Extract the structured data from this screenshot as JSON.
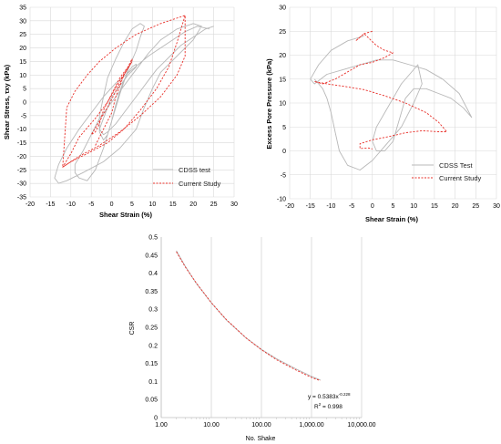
{
  "chart_data": [
    {
      "type": "line",
      "id": "stress",
      "xlabel": "Shear Strain (%)",
      "ylabel": "Shear Stress, τxy (kPa)",
      "xlim": [
        -20,
        30
      ],
      "ylim": [
        -35,
        35
      ],
      "xticks": [
        -20,
        -15,
        -10,
        -5,
        0,
        5,
        10,
        15,
        20,
        25,
        30
      ],
      "yticks": [
        -35,
        -30,
        -25,
        -20,
        -15,
        -10,
        -5,
        0,
        5,
        10,
        15,
        20,
        25,
        30,
        35
      ],
      "grid": true,
      "legend_position": "bottom-right",
      "series": [
        {
          "name": "CDSS test",
          "color": "#b8b8b8",
          "style": "solid",
          "x": [
            24,
            21,
            18,
            14,
            9,
            5,
            1,
            -2,
            -5,
            -8,
            -11,
            -13,
            -14,
            -13,
            -11,
            -7,
            -2,
            2,
            6,
            8,
            10,
            12,
            16,
            20,
            22,
            20,
            16,
            12,
            9,
            6,
            3,
            0,
            -3,
            -5,
            -7,
            -9,
            -9,
            -8,
            -6,
            -4,
            -2,
            0,
            2,
            4,
            6,
            7,
            8,
            7,
            5,
            3,
            1,
            -1,
            -2,
            -3,
            -3,
            -2,
            -1,
            0,
            1,
            2,
            3,
            4,
            5,
            6,
            6,
            4,
            2,
            0,
            -1,
            -2,
            -3,
            -2,
            -1,
            1,
            3,
            5,
            7,
            9,
            11,
            13,
            15,
            17,
            19,
            21,
            23,
            25
          ],
          "y": [
            27,
            28,
            26,
            22,
            17,
            12,
            7,
            2,
            -4,
            -10,
            -17,
            -23,
            -28,
            -30,
            -29,
            -26,
            -22,
            -17,
            -10,
            -2,
            5,
            11,
            17,
            23,
            28,
            29,
            27,
            23,
            18,
            12,
            6,
            0,
            -6,
            -12,
            -18,
            -23,
            -26,
            -28,
            -29,
            -25,
            -17,
            -7,
            3,
            12,
            19,
            24,
            28,
            29,
            27,
            22,
            16,
            9,
            2,
            -5,
            -11,
            -14,
            -12,
            -7,
            -1,
            4,
            8,
            11,
            13,
            14,
            13,
            10,
            6,
            2,
            -2,
            -6,
            -10,
            -12,
            -11,
            -8,
            -4,
            0,
            4,
            8,
            12,
            15,
            18,
            21,
            23,
            25,
            27,
            28
          ]
        },
        {
          "name": "Current Study",
          "color": "#e8302a",
          "style": "dashed",
          "x": [
            -4,
            -2,
            0,
            1,
            2,
            3,
            5,
            3,
            1,
            -1,
            -3,
            -5,
            -4,
            -3,
            -2,
            0,
            2,
            4,
            5,
            5,
            2,
            -1,
            -4,
            -8,
            -10,
            -12,
            -11,
            -8,
            -3,
            2,
            7,
            12,
            16,
            18,
            18,
            12,
            6,
            1,
            -3,
            -6,
            -9,
            -11,
            -12,
            -10,
            -6,
            -1,
            3,
            7,
            11,
            14,
            16,
            18
          ],
          "y": [
            -16,
            -10,
            -4,
            2,
            6,
            10,
            15,
            10,
            4,
            -2,
            -7,
            -12,
            -11,
            -8,
            -3,
            3,
            9,
            13,
            16,
            15,
            8,
            0,
            -6,
            -13,
            -19,
            -24,
            -23,
            -20,
            -16,
            -11,
            -5,
            2,
            10,
            17,
            32,
            29,
            25,
            20,
            15,
            10,
            4,
            -2,
            -24,
            -22,
            -19,
            -15,
            -10,
            -3,
            5,
            13,
            22,
            32
          ]
        }
      ]
    },
    {
      "type": "line",
      "id": "pore",
      "xlabel": "Shear Strain (%)",
      "ylabel": "Excess Pore Pressure (kPa)",
      "xlim": [
        -20,
        30
      ],
      "ylim": [
        -10,
        30
      ],
      "xticks": [
        -20,
        -15,
        -10,
        -5,
        0,
        5,
        10,
        15,
        20,
        25,
        30
      ],
      "yticks": [
        -10,
        -5,
        0,
        5,
        10,
        15,
        20,
        25,
        30
      ],
      "grid": true,
      "legend_position": "bottom-right",
      "series": [
        {
          "name": "CDSS Test",
          "color": "#b8b8b8",
          "style": "solid",
          "x": [
            -2,
            -6,
            -10,
            -13,
            -15,
            -14,
            -11,
            -7,
            -3,
            1,
            5,
            9,
            13,
            17,
            21,
            24,
            22,
            19,
            16,
            13,
            10,
            8,
            7,
            6,
            5,
            3,
            1,
            0,
            1,
            3,
            5,
            7,
            9,
            11,
            12,
            10,
            7,
            3,
            0,
            -3,
            -6,
            -8,
            -9,
            -10,
            -11,
            -12,
            -13,
            -14,
            -14
          ],
          "y": [
            24,
            23,
            21,
            18,
            15,
            14,
            16,
            17,
            18,
            19,
            19,
            18,
            17,
            15,
            12,
            7,
            9,
            11,
            12,
            13,
            13,
            11,
            8,
            5,
            2,
            0,
            0,
            2,
            5,
            8,
            11,
            14,
            16,
            18,
            14,
            10,
            5,
            1,
            -2,
            -4,
            -3,
            0,
            4,
            8,
            11,
            13,
            14,
            15,
            15
          ],
          "y_note": "approximate trace"
        },
        {
          "name": "Current Study",
          "color": "#e8302a",
          "style": "dashed",
          "x": [
            0,
            -2,
            -4,
            -2,
            1,
            3,
            5,
            3,
            0,
            -3,
            -6,
            -9,
            -12,
            -14,
            -11,
            -7,
            -2,
            3,
            8,
            13,
            16,
            18,
            16,
            12,
            8,
            4,
            0,
            -3,
            -3,
            -1,
            0
          ],
          "y": [
            25,
            24.5,
            23,
            24.5,
            22,
            21,
            20.5,
            19.5,
            18.5,
            18,
            16.5,
            15,
            14,
            14.5,
            14,
            13.5,
            12.8,
            11.5,
            10,
            8,
            6,
            4,
            4,
            4.2,
            3.8,
            3,
            2.3,
            1.5,
            0.5,
            0.6,
            0.4
          ]
        }
      ]
    },
    {
      "type": "line",
      "id": "csr",
      "xlabel": "No. Shake",
      "ylabel": "CSR",
      "xscale": "log",
      "xlim": [
        1,
        10000
      ],
      "ylim": [
        0,
        0.5
      ],
      "xticks": [
        1,
        10,
        100,
        1000,
        10000
      ],
      "xticklabels": [
        "1.00",
        "10.00",
        "100.00",
        "1,000.00",
        "10,000.00"
      ],
      "yticks": [
        0,
        0.05,
        0.1,
        0.15,
        0.2,
        0.25,
        0.3,
        0.35,
        0.4,
        0.45,
        0.5
      ],
      "yticklabels": [
        "0",
        "0.05",
        "0.1",
        "0.15",
        "0.2",
        "0.25",
        "0.3",
        "0.35",
        "0.4",
        "0.45",
        "0.5"
      ],
      "grid": "vertical-major",
      "annotation": {
        "equation_prefix": "y = 0.5383x",
        "equation_exponent": "-0.228",
        "r2_prefix": "R",
        "r2_sup": "2",
        "r2_value": " = 0.998"
      },
      "series": [
        {
          "name": "",
          "color": "#b3b3b3",
          "style": "solid",
          "x": [
            2,
            3,
            5,
            10,
            20,
            50,
            100,
            200,
            500,
            1000,
            1500
          ],
          "y": [
            0.462,
            0.42,
            0.372,
            0.318,
            0.27,
            0.22,
            0.189,
            0.163,
            0.134,
            0.114,
            0.104
          ]
        },
        {
          "name": "",
          "color": "#e8302a",
          "style": "dashed",
          "x": [
            2,
            3,
            5,
            10,
            20,
            50,
            100,
            200,
            500,
            1000,
            1500
          ],
          "y": [
            0.459,
            0.418,
            0.373,
            0.318,
            0.271,
            0.22,
            0.188,
            0.16,
            0.131,
            0.111,
            0.102
          ]
        }
      ]
    }
  ]
}
